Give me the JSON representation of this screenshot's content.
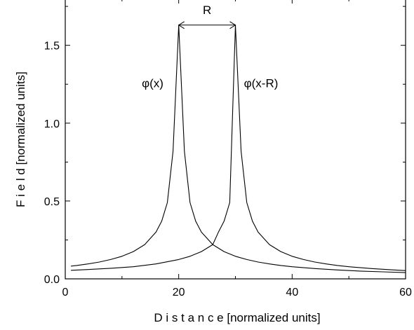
{
  "chart_data": {
    "type": "line",
    "xlabel": "D i s t a n c e [normalized units]",
    "ylabel": "F i e l d [normalized units]",
    "xlim": [
      0,
      60
    ],
    "ylim": [
      0,
      1.8
    ],
    "x_ticks": [
      0,
      20,
      40,
      60
    ],
    "x_tick_labels": [
      "0",
      "20",
      "40",
      "60"
    ],
    "y_ticks": [
      0.0,
      0.5,
      1.0,
      1.5
    ],
    "y_tick_labels": [
      "0.0",
      "0.5",
      "1.0",
      "1.5"
    ],
    "grid": false,
    "series": [
      {
        "x": [
          1,
          2,
          4,
          6,
          8,
          10,
          12,
          14,
          16,
          17,
          18,
          19,
          20,
          21,
          22,
          23,
          24,
          26,
          28,
          30,
          32,
          34,
          36,
          38,
          40,
          44,
          48,
          52,
          56,
          60
        ],
        "y": [
          0.082,
          0.086,
          0.096,
          0.108,
          0.124,
          0.145,
          0.175,
          0.22,
          0.3,
          0.37,
          0.49,
          0.82,
          1.63,
          0.82,
          0.49,
          0.37,
          0.3,
          0.22,
          0.175,
          0.145,
          0.124,
          0.108,
          0.096,
          0.086,
          0.078,
          0.066,
          0.057,
          0.05,
          0.045,
          0.04
        ]
      },
      {
        "x": [
          1,
          4,
          8,
          12,
          16,
          20,
          22,
          24,
          26,
          27,
          28,
          29,
          30,
          31,
          32,
          33,
          34,
          36,
          38,
          40,
          42,
          44,
          46,
          48,
          50,
          54,
          58,
          60
        ],
        "y": [
          0.055,
          0.06,
          0.068,
          0.078,
          0.096,
          0.124,
          0.145,
          0.175,
          0.22,
          0.3,
          0.37,
          0.49,
          1.63,
          0.82,
          0.49,
          0.37,
          0.3,
          0.22,
          0.175,
          0.145,
          0.124,
          0.108,
          0.096,
          0.086,
          0.078,
          0.066,
          0.057,
          0.053
        ]
      }
    ],
    "annotations": [
      {
        "text": "R",
        "x": 25,
        "y": 1.7
      },
      {
        "text": "φ(x)",
        "x": 13.5,
        "y": 1.23
      },
      {
        "text": "φ(x-R)",
        "x": 31.5,
        "y": 1.23
      }
    ],
    "r_arrow": {
      "x1": 20,
      "x2": 30,
      "y": 1.63
    }
  }
}
